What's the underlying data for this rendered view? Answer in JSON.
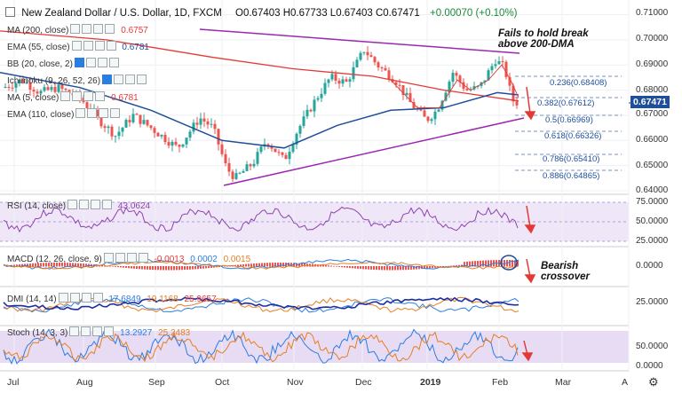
{
  "header": {
    "symbol": "New Zealand Dollar / U.S. Dollar, 1D, FXCM",
    "ohlc": "O0.67403  H0.67733  L0.67403  C0.67471",
    "change": "+0.00070 (+0.10%)"
  },
  "indicators": {
    "ma200": {
      "label": "MA (200, close)",
      "value": "0.6757",
      "color": "#e53935"
    },
    "ema55": {
      "label": "EMA (55, close)",
      "value": "0.6781",
      "color": "#1f4e9a"
    },
    "bb": {
      "label": "BB (20, close, 2)"
    },
    "ichimoku": {
      "label": "Ichimoku (9, 26, 52, 26)"
    },
    "ma5": {
      "label": "MA (5, close)",
      "value": "0.6781"
    },
    "ema110": {
      "label": "EMA (110, close)"
    }
  },
  "price_axis": {
    "ticks": [
      "0.71000",
      "0.70000",
      "0.69000",
      "0.68000",
      "0.67000",
      "0.66000",
      "0.65000",
      "0.64000"
    ],
    "last": "0.67471"
  },
  "annotations": {
    "top": [
      "Fails to hold break",
      "above 200-DMA"
    ],
    "macd": [
      "Bearish",
      "crossover"
    ]
  },
  "fib_levels": [
    "0.236(0.68408)",
    "0.382(0.67612)",
    "0.5(0.66969)",
    "0.618(0.66326)",
    "0.786(0.65410)",
    "0.886(0.64865)"
  ],
  "panels": {
    "rsi": {
      "label": "RSI (14, close)",
      "value": "43.0624",
      "ticks": [
        "75.0000",
        "50.0000",
        "25.0000"
      ]
    },
    "macd": {
      "label": "MACD (12, 26, close, 9)",
      "values": [
        "-0.0013",
        "0.0002",
        "0.0015"
      ],
      "ticks": [
        "0.0000"
      ]
    },
    "dmi": {
      "label": "DMI (14, 14)",
      "values": [
        "17.6849",
        "19.1168",
        "25.9657"
      ],
      "ticks": [
        "25.0000"
      ]
    },
    "stoch": {
      "label": "Stoch (14, 3, 3)",
      "values": [
        "13.2927",
        "25.2483"
      ],
      "ticks": [
        "50.0000",
        "0.0000"
      ]
    }
  },
  "x_axis": [
    "Jul",
    "Aug",
    "Sep",
    "Oct",
    "Nov",
    "Dec",
    "2019",
    "Feb",
    "Mar",
    "A"
  ],
  "colors": {
    "up": "#26a69a",
    "down": "#ef5350",
    "ma200": "#e53935",
    "ema55": "#1f4e9a",
    "trend": "#9c27b0",
    "panel_band": "#e8dcf5"
  },
  "chart_data": {
    "type": "line",
    "title": "New Zealand Dollar / U.S. Dollar, 1D, FXCM",
    "x": [
      "Jul",
      "Aug",
      "Sep",
      "Oct",
      "Nov",
      "Dec",
      "2019",
      "Feb"
    ],
    "series": [
      {
        "name": "",
        "values": [
          0.684,
          0.674,
          0.662,
          0.648,
          0.654,
          0.69,
          0.667,
          0.68
        ]
      },
      {
        "name": "MA (200, close)",
        "values": [
          0.703,
          0.699,
          0.694,
          0.689,
          0.687,
          0.684,
          0.68,
          0.676
        ]
      },
      {
        "name": "EMA (55, close)",
        "values": [
          0.686,
          0.677,
          0.668,
          0.658,
          0.658,
          0.671,
          0.674,
          0.678
        ]
      }
    ],
    "ylim": [
      0.64,
      0.713
    ]
  }
}
